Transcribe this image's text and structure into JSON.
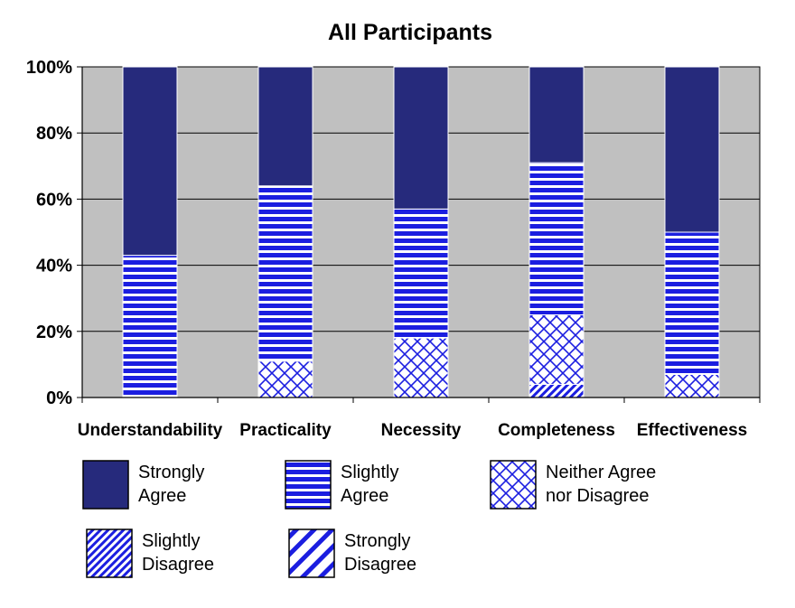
{
  "chart_data": {
    "type": "bar",
    "stacked": true,
    "title": "All Participants",
    "xlabel": "",
    "ylabel": "",
    "ylim": [
      0,
      100
    ],
    "yticks": [
      "0%",
      "20%",
      "40%",
      "60%",
      "80%",
      "100%"
    ],
    "ytick_values": [
      0,
      20,
      40,
      60,
      80,
      100
    ],
    "grid": true,
    "legend_position": "bottom",
    "categories": [
      "Understandability",
      "Practicality",
      "Necessity",
      "Completeness",
      "Effectiveness"
    ],
    "series": [
      {
        "name": "Strongly Disagree",
        "legend_lines": [
          "Strongly",
          "Disagree"
        ],
        "pattern": "wide-diagonal-stripes",
        "values": [
          0,
          0,
          0,
          0,
          0
        ]
      },
      {
        "name": "Slightly Disagree",
        "legend_lines": [
          "Slightly",
          "Disagree"
        ],
        "pattern": "narrow-diagonal-stripes",
        "values": [
          0,
          0,
          0,
          4,
          0
        ]
      },
      {
        "name": "Neither Agree nor Disagree",
        "legend_lines": [
          "Neither Agree",
          "nor Disagree"
        ],
        "pattern": "crosshatch",
        "values": [
          0,
          11,
          18,
          21,
          7
        ]
      },
      {
        "name": "Slightly Agree",
        "legend_lines": [
          "Slightly",
          "Agree"
        ],
        "pattern": "horizontal-stripes",
        "values": [
          43,
          53,
          39,
          46,
          43
        ]
      },
      {
        "name": "Strongly Agree",
        "legend_lines": [
          "Strongly",
          "Agree"
        ],
        "pattern": "solid",
        "values": [
          57,
          36,
          43,
          29,
          50
        ]
      }
    ],
    "colors": {
      "plot_background": "#c0c0c0",
      "bar_primary": "#1b1ee0",
      "strongly_agree": "#262a7c",
      "bar_light": "#ffffff",
      "gridline": "#000000"
    }
  }
}
